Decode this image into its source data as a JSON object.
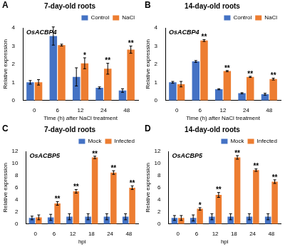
{
  "chart_data": [
    {
      "type": "bar",
      "panel_label": "A",
      "title": "7-day-old roots",
      "subtitle": "OsACBP4",
      "x_label": "Time (h) after NaCl treatment",
      "y_label": "Relative expression",
      "categories": [
        "0",
        "6",
        "12",
        "24",
        "48"
      ],
      "series": [
        {
          "name": "Control",
          "color": "#4472c4",
          "values": [
            1.0,
            3.55,
            1.3,
            0.7,
            0.55
          ],
          "errors": [
            0.1,
            0.5,
            0.5,
            0.05,
            0.1
          ]
        },
        {
          "name": "NaCl",
          "color": "#ed7d31",
          "values": [
            1.0,
            3.05,
            2.05,
            1.75,
            2.8
          ],
          "errors": [
            0.15,
            0.05,
            0.3,
            0.3,
            0.2
          ]
        }
      ],
      "significance": [
        null,
        null,
        "*",
        "**",
        "**"
      ],
      "ylim": [
        0,
        4
      ],
      "yticks": [
        0,
        1,
        2,
        3,
        4
      ],
      "grid": false,
      "legend": "upper right"
    },
    {
      "type": "bar",
      "panel_label": "B",
      "title": "14-day-old roots",
      "subtitle": "OsACBP4",
      "x_label": "Time (h) after NaCl treatment",
      "y_label": "Relative expression",
      "categories": [
        "0",
        "6",
        "12",
        "24",
        "48"
      ],
      "series": [
        {
          "name": "Control",
          "color": "#4472c4",
          "values": [
            1.0,
            2.15,
            0.62,
            0.4,
            0.35
          ],
          "errors": [
            0.05,
            0.05,
            0.03,
            0.03,
            0.05
          ]
        },
        {
          "name": "NaCl",
          "color": "#ed7d31",
          "values": [
            0.9,
            3.3,
            1.62,
            1.3,
            1.18
          ],
          "errors": [
            0.15,
            0.05,
            0.03,
            0.03,
            0.05
          ]
        }
      ],
      "significance": [
        null,
        "**",
        "**",
        "**",
        "**"
      ],
      "ylim": [
        0,
        4
      ],
      "yticks": [
        0,
        1,
        2,
        3,
        4
      ],
      "grid": false,
      "legend": "upper right"
    },
    {
      "type": "bar",
      "panel_label": "C",
      "title": "7-day-old roots",
      "subtitle": "OsACBP5",
      "x_label": "hpi",
      "y_label": "Relative expression",
      "categories": [
        "0",
        "6",
        "12",
        "18",
        "24",
        "48"
      ],
      "series": [
        {
          "name": "Mock",
          "color": "#4472c4",
          "values": [
            1.0,
            1.1,
            1.2,
            1.2,
            1.2,
            1.2
          ],
          "errors": [
            0.3,
            0.5,
            0.5,
            0.5,
            0.5,
            0.5
          ]
        },
        {
          "name": "Infected",
          "color": "#ed7d31",
          "values": [
            1.1,
            3.4,
            5.4,
            11.0,
            8.5,
            6.0
          ],
          "errors": [
            0.4,
            0.3,
            0.3,
            0.2,
            0.3,
            0.3
          ]
        }
      ],
      "significance": [
        null,
        "**",
        "**",
        "**",
        "**",
        "**"
      ],
      "ylim": [
        0,
        12
      ],
      "yticks": [
        0,
        2,
        4,
        6,
        8,
        10,
        12
      ],
      "grid": false,
      "legend": "upper right"
    },
    {
      "type": "bar",
      "panel_label": "D",
      "title": "14-day-old roots",
      "subtitle": "OsACBP5",
      "x_label": "hpi",
      "y_label": "Relative expression",
      "categories": [
        "0",
        "6",
        "12",
        "18",
        "24",
        "48"
      ],
      "series": [
        {
          "name": "Mock",
          "color": "#4472c4",
          "values": [
            1.0,
            1.0,
            1.2,
            1.2,
            1.2,
            1.2
          ],
          "errors": [
            0.4,
            0.5,
            0.5,
            0.5,
            0.5,
            0.5
          ]
        },
        {
          "name": "Infected",
          "color": "#ed7d31",
          "values": [
            1.0,
            2.5,
            4.8,
            11.0,
            8.9,
            7.0
          ],
          "errors": [
            0.4,
            0.2,
            0.4,
            0.3,
            0.2,
            0.3
          ]
        }
      ],
      "significance": [
        null,
        "*",
        "**",
        "**",
        "**",
        "**"
      ],
      "ylim": [
        0,
        12
      ],
      "yticks": [
        0,
        2,
        4,
        6,
        8,
        10,
        12
      ],
      "grid": false,
      "legend": "upper right"
    }
  ]
}
